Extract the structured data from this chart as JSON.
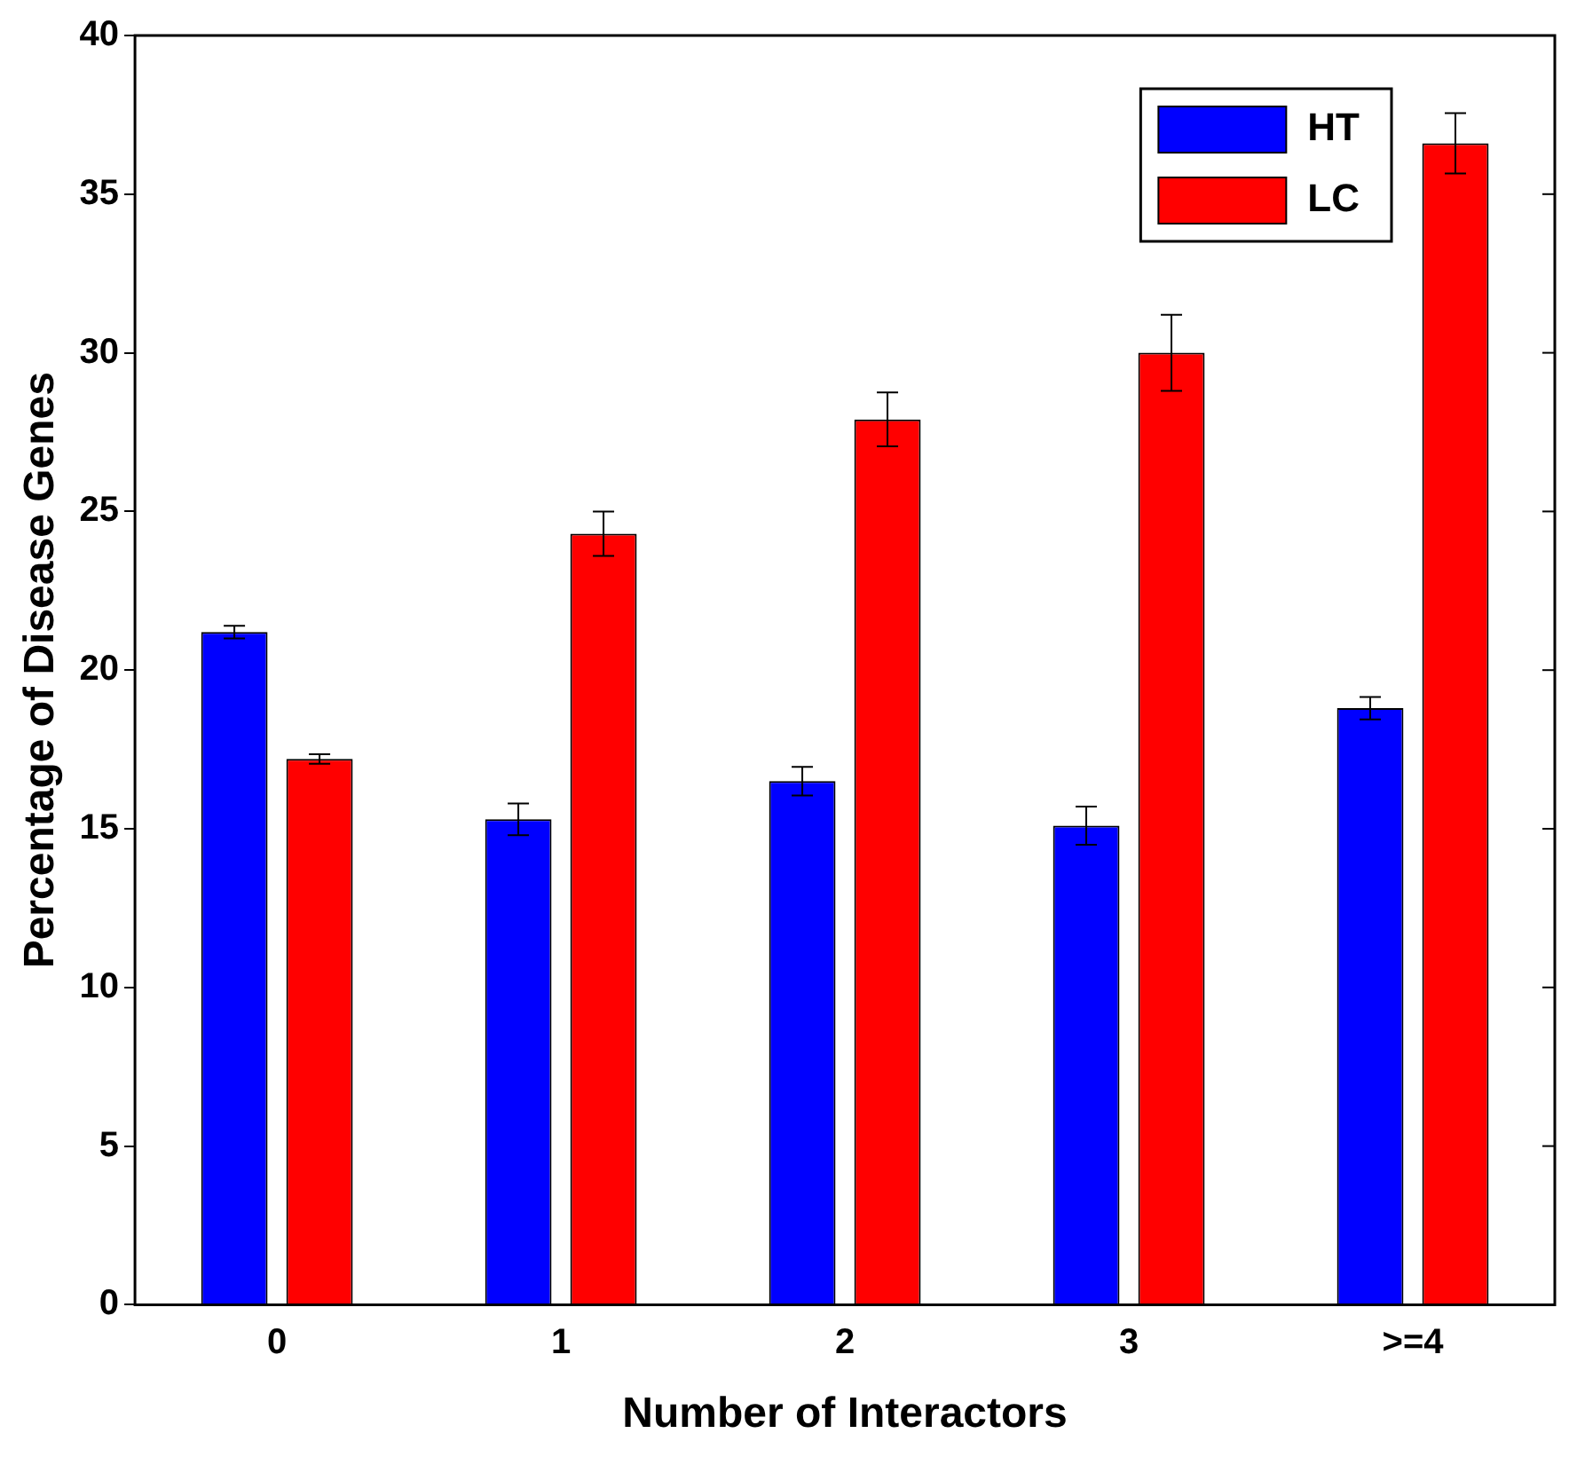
{
  "chart_data": {
    "type": "bar",
    "xlabel": "Number of Interactors",
    "ylabel": "Percentage of Disease Genes",
    "categories": [
      "0",
      "1",
      "2",
      "3",
      ">=4"
    ],
    "series": [
      {
        "name": "HT",
        "color": "#0000ff",
        "values": [
          21.2,
          15.3,
          16.5,
          15.1,
          18.8
        ],
        "errors": [
          0.2,
          0.5,
          0.45,
          0.6,
          0.35
        ]
      },
      {
        "name": "LC",
        "color": "#ff0000",
        "values": [
          17.2,
          24.3,
          27.9,
          30.0,
          36.6
        ],
        "errors": [
          0.15,
          0.7,
          0.85,
          1.2,
          0.95
        ]
      }
    ],
    "ylim": [
      0,
      40
    ],
    "yticks": [
      0,
      5,
      10,
      15,
      20,
      25,
      30,
      35,
      40
    ],
    "grid": false,
    "legend": "top right"
  }
}
